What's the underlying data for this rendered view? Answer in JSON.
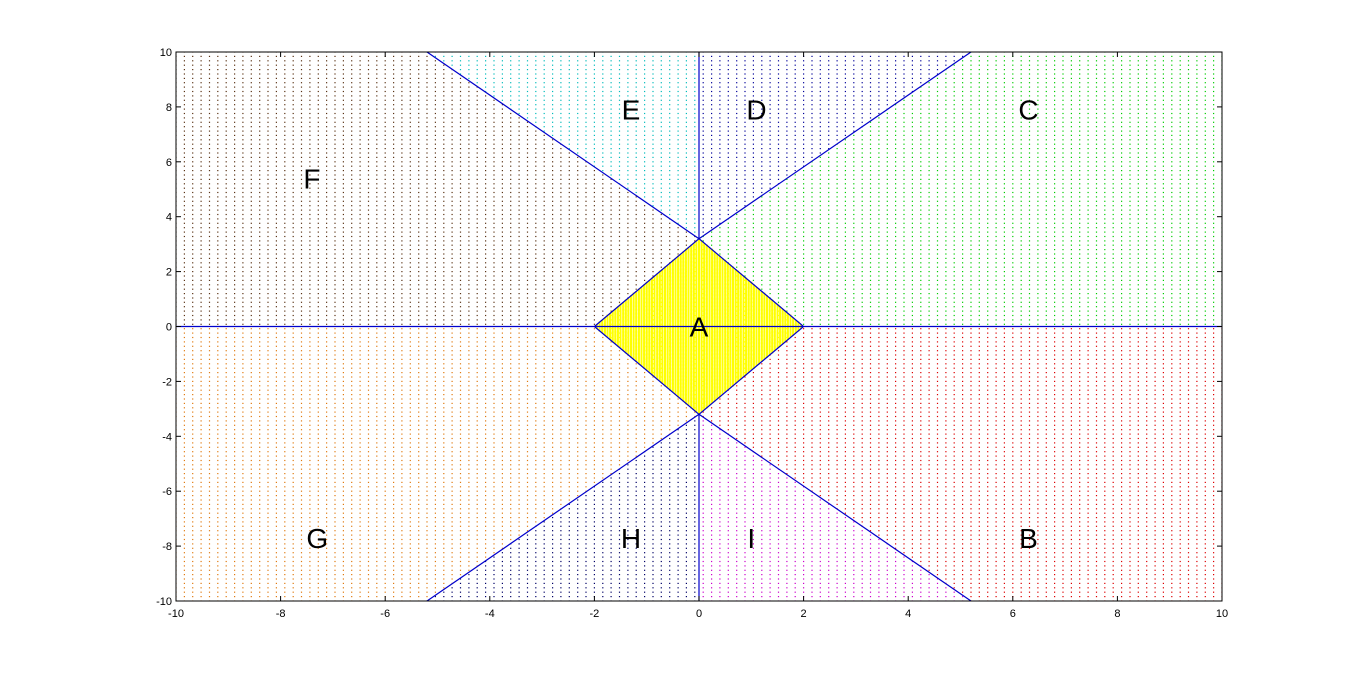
{
  "chart_data": {
    "type": "scatter",
    "title": "",
    "xlabel": "",
    "ylabel": "",
    "xlim": [
      -10,
      10
    ],
    "ylim": [
      -10,
      10
    ],
    "grid": false,
    "legend": "none",
    "x_ticks": [
      -10,
      -8,
      -6,
      -4,
      -2,
      0,
      2,
      4,
      6,
      8,
      10
    ],
    "y_ticks": [
      -10,
      -8,
      -6,
      -4,
      -2,
      0,
      2,
      4,
      6,
      8,
      10
    ],
    "x_tick_labels": [
      "-10",
      "-8",
      "-6",
      "-4",
      "-2",
      "0",
      "2",
      "4",
      "6",
      "8",
      "10"
    ],
    "y_tick_labels": [
      "-10",
      "-8",
      "-6",
      "-4",
      "-2",
      "0",
      "2",
      "4",
      "6",
      "8",
      "10"
    ],
    "boundary_color": "#0000cc",
    "boundaries": [
      {
        "x": [
          -10,
          10
        ],
        "y": [
          0,
          0
        ]
      },
      {
        "x": [
          0,
          0
        ],
        "y": [
          3.2,
          10
        ]
      },
      {
        "x": [
          0,
          0
        ],
        "y": [
          -10,
          -3.2
        ]
      },
      {
        "x": [
          0,
          5.2
        ],
        "y": [
          3.2,
          10
        ]
      },
      {
        "x": [
          0,
          -5.2
        ],
        "y": [
          3.2,
          10
        ]
      },
      {
        "x": [
          0,
          5.2
        ],
        "y": [
          -3.2,
          -10
        ]
      },
      {
        "x": [
          0,
          -5.2
        ],
        "y": [
          -3.2,
          -10
        ]
      },
      {
        "x": [
          -2,
          0,
          2,
          0,
          -2
        ],
        "y": [
          0,
          3.2,
          0,
          -3.2,
          0
        ]
      }
    ],
    "regions": [
      {
        "label": "A",
        "color": "#ffff00",
        "label_x": 0,
        "label_y": 0
      },
      {
        "label": "B",
        "color": "#dd0000",
        "label_x": 6.3,
        "label_y": -7.7
      },
      {
        "label": "C",
        "color": "#00cc00",
        "label_x": 6.3,
        "label_y": 7.9
      },
      {
        "label": "D",
        "color": "#000099",
        "label_x": 1.1,
        "label_y": 7.9
      },
      {
        "label": "E",
        "color": "#00bbbb",
        "label_x": -1.3,
        "label_y": 7.9
      },
      {
        "label": "F",
        "color": "#5a3214",
        "label_x": -7.4,
        "label_y": 5.4
      },
      {
        "label": "G",
        "color": "#e07a10",
        "label_x": -7.3,
        "label_y": -7.7
      },
      {
        "label": "H",
        "color": "#000066",
        "label_x": -1.3,
        "label_y": -7.7
      },
      {
        "label": "I",
        "color": "#cc00cc",
        "label_x": 1.0,
        "label_y": -7.7
      }
    ]
  }
}
